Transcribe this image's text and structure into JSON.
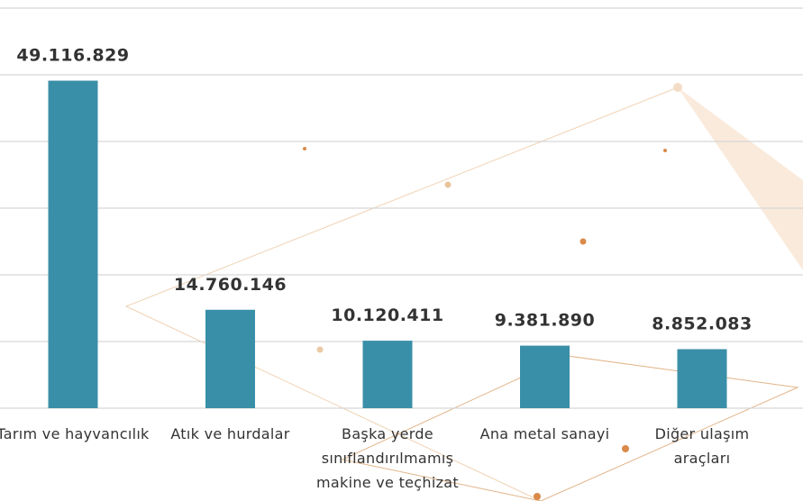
{
  "chart_data": {
    "type": "bar",
    "categories": [
      "Tarım ve hayvancılık",
      "Atık ve hurdalar",
      "Başka yerde sınıflandırılmamış makine ve teçhizat",
      "Ana metal sanayi",
      "Diğer ulaşım araçları"
    ],
    "values": [
      49116829,
      14760146,
      10120411,
      9381890,
      8852083
    ],
    "value_labels": [
      "49.116.829",
      "14.760.146",
      "10.120.411",
      "9.381.890",
      "8.852.083"
    ],
    "color": "#3a8fa8",
    "ylim": [
      0,
      60000000
    ],
    "yticks": [
      0,
      10000000,
      20000000,
      30000000,
      40000000,
      50000000,
      60000000
    ],
    "grid": true
  }
}
